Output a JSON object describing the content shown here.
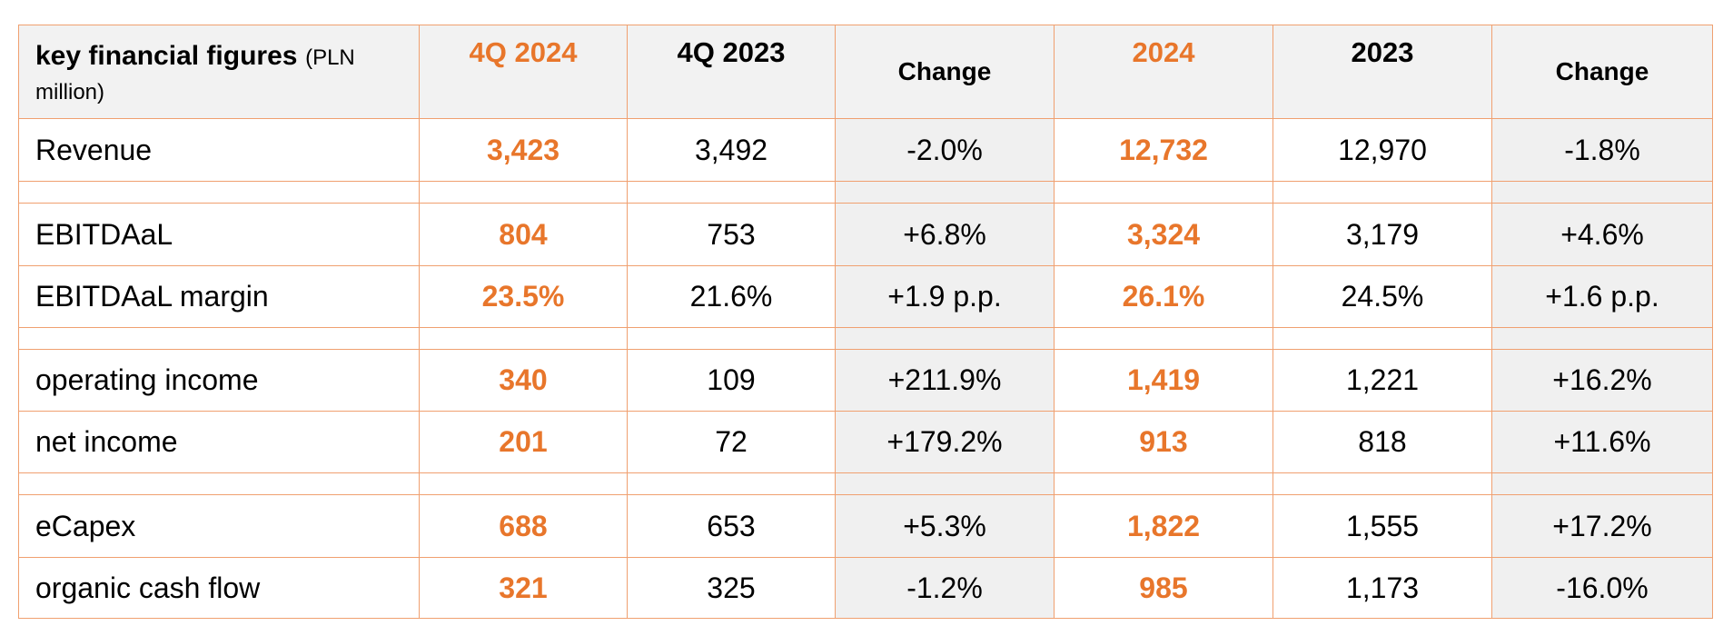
{
  "table": {
    "header": {
      "title": "key financial figures",
      "unit_open": "(PLN",
      "unit_close": "million)",
      "col_4q2024": "4Q 2024",
      "col_4q2023": "4Q 2023",
      "col_change_q": "Change",
      "col_2024": "2024",
      "col_2023": "2023",
      "col_change_y": "Change"
    },
    "rows": [
      {
        "label": "Revenue",
        "q2024": "3,423",
        "q2023": "3,492",
        "qchg": "-2.0%",
        "y2024": "12,732",
        "y2023": "12,970",
        "ychg": "-1.8%"
      },
      {
        "label": "EBITDAaL",
        "q2024": "804",
        "q2023": "753",
        "qchg": "+6.8%",
        "y2024": "3,324",
        "y2023": "3,179",
        "ychg": "+4.6%"
      },
      {
        "label": "EBITDAaL margin",
        "q2024": "23.5%",
        "q2023": "21.6%",
        "qchg": "+1.9 p.p.",
        "y2024": "26.1%",
        "y2023": "24.5%",
        "ychg": "+1.6 p.p."
      },
      {
        "label": "operating income",
        "q2024": "340",
        "q2023": "109",
        "qchg": "+211.9%",
        "y2024": "1,419",
        "y2023": "1,221",
        "ychg": "+16.2%"
      },
      {
        "label": "net income",
        "q2024": "201",
        "q2023": "72",
        "qchg": "+179.2%",
        "y2024": "913",
        "y2023": "818",
        "ychg": "+11.6%"
      },
      {
        "label": "eCapex",
        "q2024": "688",
        "q2023": "653",
        "qchg": "+5.3%",
        "y2024": "1,822",
        "y2023": "1,555",
        "ychg": "+17.2%"
      },
      {
        "label": "organic cash flow",
        "q2024": "321",
        "q2023": "325",
        "qchg": "-1.2%",
        "y2024": "985",
        "y2023": "1,173",
        "ychg": "-16.0%"
      }
    ]
  },
  "colors": {
    "accent": "#e8762b",
    "border": "#f0a070",
    "shade": "#f0f0f0"
  }
}
